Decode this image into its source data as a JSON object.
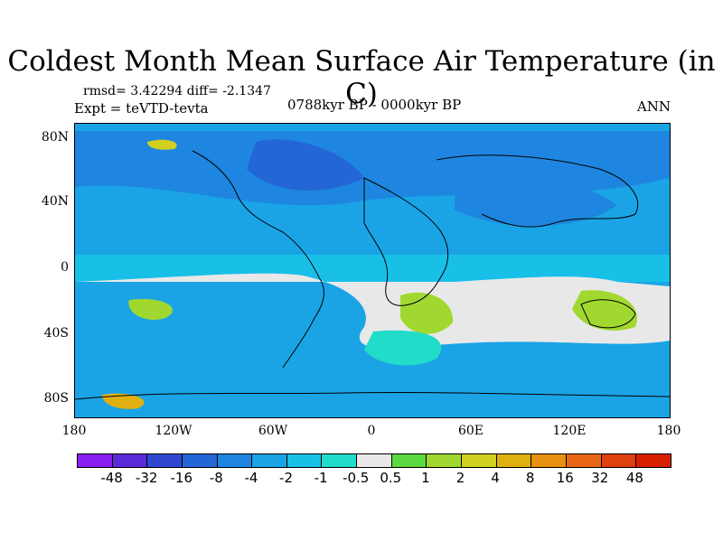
{
  "title": "Coldest Month Mean Surface Air Temperature (in C)",
  "stats": "rmsd= 3.42294 diff= -2.1347",
  "expt": "Expt = teVTD-tevta",
  "period": "0788kyr BP - 0000kyr BP",
  "season": "ANN",
  "lat_labels": [
    "80N",
    "40N",
    "0",
    "40S",
    "80S"
  ],
  "lon_labels": [
    "180",
    "120W",
    "60W",
    "0",
    "60E",
    "120E",
    "180"
  ],
  "colorbar": {
    "labels": [
      "-48",
      "-32",
      "-16",
      "-8",
      "-4",
      "-2",
      "-1",
      "-0.5",
      "0.5",
      "1",
      "2",
      "4",
      "8",
      "16",
      "32",
      "48"
    ],
    "colors": [
      "#8a1ef0",
      "#5a2bd8",
      "#3048d0",
      "#2466d6",
      "#1e86e0",
      "#1aa4e6",
      "#18c0e8",
      "#20dcc8",
      "#e8e8e8",
      "#5cd840",
      "#a0d830",
      "#d0d020",
      "#e0b010",
      "#e89010",
      "#e86818",
      "#e04010",
      "#d82000"
    ]
  },
  "chart_data": {
    "type": "heatmap",
    "title": "Coldest Month Mean Surface Air Temperature (in C)",
    "x_axis": {
      "range": [
        -180,
        180
      ],
      "ticks": [
        "180",
        "120W",
        "60W",
        "0",
        "60E",
        "120E",
        "180"
      ]
    },
    "y_axis": {
      "range": [
        -90,
        90
      ],
      "ticks": [
        "80N",
        "40N",
        "0",
        "40S",
        "80S"
      ]
    },
    "levels": [
      -48,
      -32,
      -16,
      -8,
      -4,
      -2,
      -1,
      -0.5,
      0.5,
      1,
      2,
      4,
      8,
      16,
      32,
      48
    ],
    "dominant_pattern": "negative anomalies (-1 to -8) across northern hemisphere and tropics; near-zero band (-0.5 to 0.5) at 20S-60S; positive anomalies (1 to 8) over Antarctic coast, South Atlantic and Australia"
  }
}
